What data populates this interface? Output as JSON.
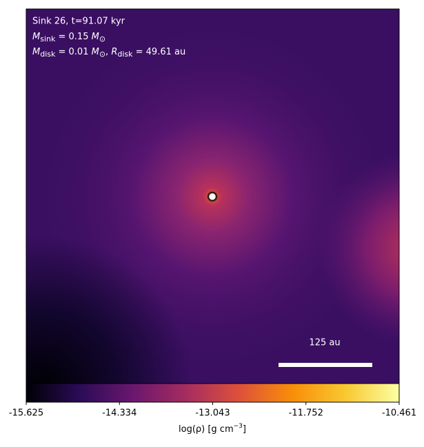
{
  "chart_data": {
    "type": "heatmap",
    "annotations": {
      "line1": "Sink 26, t=91.07 kyr",
      "line2": {
        "symbol": "M",
        "sub": "sink",
        "rest": " = 0.15 ",
        "unit": "M",
        "unit_sub": "⊙"
      },
      "line3": {
        "symbol": "M",
        "sub": "disk",
        "rest": " = 0.01 ",
        "unit": "M",
        "unit_sub": "⊙",
        "sep": ", ",
        "symbol2": "R",
        "sub2": "disk",
        "rest2": " = 49.61 au"
      }
    },
    "scale_bar_label": "125 au",
    "colorbar": {
      "label": {
        "text": "log(ρ) [g cm",
        "sup": "−3",
        "close": "]"
      },
      "xlim": [
        -15.625,
        -10.461
      ],
      "xticks": [
        -15.625,
        -14.334,
        -13.043,
        -11.752,
        -10.461
      ],
      "colors": [
        "#000004",
        "#2b0b57",
        "#6a176e",
        "#a52c60",
        "#dd513a",
        "#f98e09",
        "#f8c932",
        "#fcffa4"
      ]
    }
  }
}
